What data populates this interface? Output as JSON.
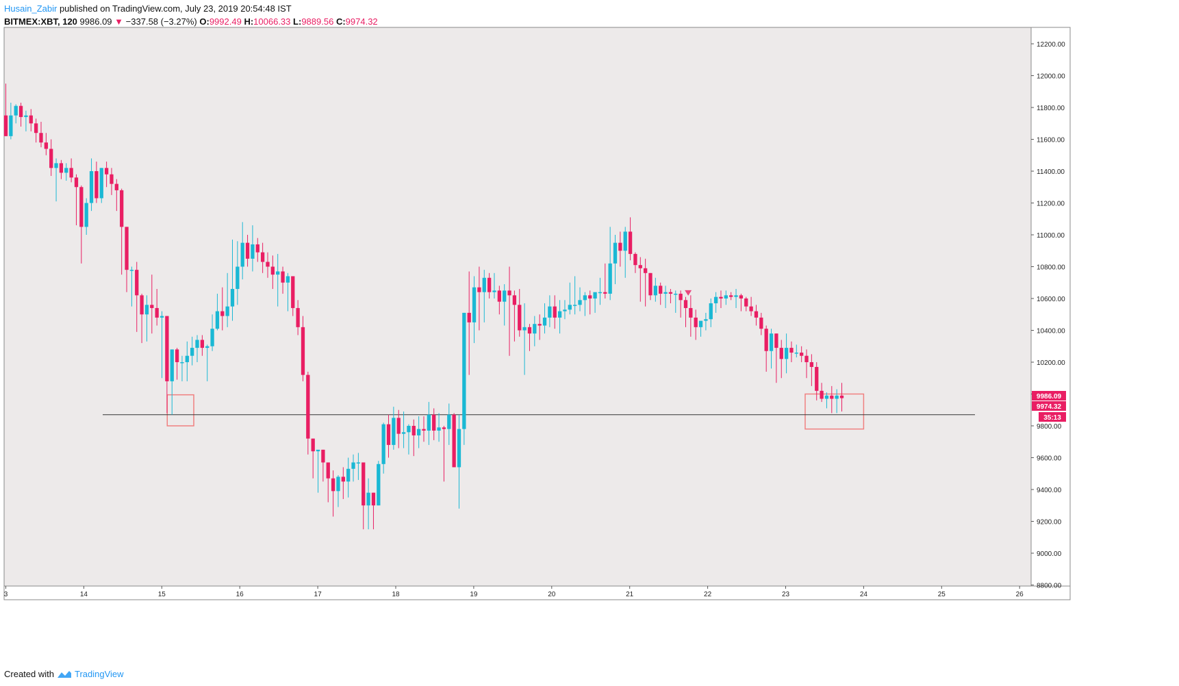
{
  "header": {
    "author": "Husain_Zabir",
    "published": "published on TradingView.com, July 23, 2019 20:54:48 IST",
    "symbol": "BITMEX:XBT, 120",
    "last": "9986.09",
    "change": "−337.58 (−3.27%)",
    "open_label": "O:",
    "open": "9992.49",
    "high_label": "H:",
    "high": "10066.33",
    "low_label": "L:",
    "low": "9889.56",
    "close_label": "C:",
    "close": "9974.32"
  },
  "footer": {
    "created_with": "Created with",
    "brand": "TradingView"
  },
  "colors": {
    "up": "#1ab8d4",
    "down": "#e91e63",
    "background": "#edeaea",
    "box": "#f08080",
    "hline": "#333333"
  },
  "icons": {
    "down_arrow": "triangle-down-icon",
    "logo": "tradingview-logo-icon",
    "marker": "triangle-down-icon"
  },
  "chart_data": {
    "type": "candlestick",
    "y_ticks": [
      "12200.00",
      "12000.00",
      "11800.00",
      "11600.00",
      "11400.00",
      "11200.00",
      "11000.00",
      "10800.00",
      "10600.00",
      "10400.00",
      "10200.00",
      "10000.00",
      "9800.00",
      "9600.00",
      "9400.00",
      "9200.00",
      "9000.00",
      "8800.00"
    ],
    "x_ticks": [
      "3",
      "14",
      "15",
      "16",
      "17",
      "18",
      "19",
      "20",
      "21",
      "22",
      "23",
      "24",
      "25",
      "26"
    ],
    "ylim": [
      8800,
      12300
    ],
    "price_labels": [
      {
        "text": "9986.09",
        "kind": "last"
      },
      {
        "text": "9974.32",
        "kind": "close"
      },
      {
        "text": "35:13",
        "kind": "timer"
      }
    ],
    "support_level": 9870,
    "annotation_boxes": [
      {
        "x_from": 15.07,
        "x_to": 15.41,
        "y_from": 9800,
        "y_to": 9995
      },
      {
        "x_from": 23.25,
        "x_to": 24.0,
        "y_from": 9780,
        "y_to": 10000
      }
    ],
    "marker": {
      "x": 21.75,
      "y": 10635
    },
    "candles": [
      [
        11750,
        11950,
        11620,
        11620
      ],
      [
        11620,
        11830,
        11600,
        11750
      ],
      [
        11750,
        11820,
        11700,
        11810
      ],
      [
        11810,
        11830,
        11680,
        11740
      ],
      [
        11740,
        11780,
        11650,
        11750
      ],
      [
        11750,
        11790,
        11650,
        11700
      ],
      [
        11700,
        11730,
        11580,
        11640
      ],
      [
        11640,
        11710,
        11550,
        11580
      ],
      [
        11580,
        11640,
        11500,
        11540
      ],
      [
        11540,
        11600,
        11370,
        11420
      ],
      [
        11420,
        11480,
        11210,
        11450
      ],
      [
        11450,
        11470,
        11350,
        11390
      ],
      [
        11390,
        11450,
        11340,
        11420
      ],
      [
        11420,
        11480,
        11330,
        11360
      ],
      [
        11360,
        11380,
        11060,
        11300
      ],
      [
        11300,
        11310,
        10820,
        11050
      ],
      [
        11050,
        11230,
        11000,
        11200
      ],
      [
        11200,
        11480,
        11150,
        11400
      ],
      [
        11400,
        11460,
        11200,
        11230
      ],
      [
        11230,
        11420,
        11200,
        11420
      ],
      [
        11420,
        11460,
        11300,
        11380
      ],
      [
        11380,
        11420,
        11250,
        11320
      ],
      [
        11320,
        11350,
        11150,
        11280
      ],
      [
        11280,
        11290,
        10750,
        11050
      ],
      [
        11050,
        11050,
        10640,
        10780
      ],
      [
        10780,
        10800,
        10550,
        10780
      ],
      [
        10780,
        10830,
        10390,
        10620
      ],
      [
        10620,
        10630,
        10320,
        10500
      ],
      [
        10500,
        10620,
        10330,
        10560
      ],
      [
        10560,
        10750,
        10380,
        10540
      ],
      [
        10540,
        10660,
        10430,
        10480
      ],
      [
        10480,
        10520,
        10100,
        10490
      ],
      [
        10490,
        10490,
        9880,
        10080
      ],
      [
        10080,
        10280,
        9870,
        10280
      ],
      [
        10280,
        10290,
        10090,
        10200
      ],
      [
        10200,
        10240,
        10080,
        10200
      ],
      [
        10200,
        10330,
        10080,
        10240
      ],
      [
        10240,
        10360,
        10180,
        10290
      ],
      [
        10290,
        10370,
        10200,
        10340
      ],
      [
        10340,
        10370,
        10240,
        10290
      ],
      [
        10290,
        10310,
        10080,
        10300
      ],
      [
        10300,
        10500,
        10270,
        10410
      ],
      [
        10410,
        10630,
        10400,
        10520
      ],
      [
        10520,
        10670,
        10400,
        10490
      ],
      [
        10490,
        10760,
        10420,
        10550
      ],
      [
        10550,
        10970,
        10460,
        10660
      ],
      [
        10660,
        10960,
        10560,
        10800
      ],
      [
        10800,
        11080,
        10720,
        10950
      ],
      [
        10950,
        11000,
        10800,
        10850
      ],
      [
        10850,
        11060,
        10770,
        10940
      ],
      [
        10940,
        10980,
        10830,
        10890
      ],
      [
        10890,
        10950,
        10760,
        10830
      ],
      [
        10830,
        10890,
        10730,
        10800
      ],
      [
        10800,
        10870,
        10660,
        10750
      ],
      [
        10750,
        10880,
        10550,
        10770
      ],
      [
        10770,
        10800,
        10630,
        10700
      ],
      [
        10700,
        10760,
        10520,
        10740
      ],
      [
        10740,
        10740,
        10490,
        10540
      ],
      [
        10540,
        10590,
        10370,
        10420
      ],
      [
        10420,
        10490,
        10080,
        10120
      ],
      [
        10120,
        10140,
        9620,
        9720
      ],
      [
        9720,
        9720,
        9470,
        9640
      ],
      [
        9640,
        9640,
        9380,
        9650
      ],
      [
        9650,
        9650,
        9450,
        9570
      ],
      [
        9570,
        9570,
        9320,
        9470
      ],
      [
        9470,
        9520,
        9230,
        9390
      ],
      [
        9390,
        9490,
        9290,
        9480
      ],
      [
        9480,
        9540,
        9340,
        9450
      ],
      [
        9450,
        9600,
        9350,
        9530
      ],
      [
        9530,
        9620,
        9450,
        9570
      ],
      [
        9570,
        9630,
        9460,
        9570
      ],
      [
        9570,
        9570,
        9150,
        9300
      ],
      [
        9300,
        9470,
        9150,
        9380
      ],
      [
        9380,
        9380,
        9150,
        9300
      ],
      [
        9300,
        9580,
        9300,
        9560
      ],
      [
        9560,
        9820,
        9500,
        9810
      ],
      [
        9810,
        9870,
        9600,
        9680
      ],
      [
        9680,
        9920,
        9650,
        9850
      ],
      [
        9850,
        9900,
        9660,
        9750
      ],
      [
        9750,
        9890,
        9660,
        9760
      ],
      [
        9760,
        9810,
        9620,
        9800
      ],
      [
        9800,
        9840,
        9610,
        9740
      ],
      [
        9740,
        9860,
        9660,
        9780
      ],
      [
        9780,
        9860,
        9700,
        9770
      ],
      [
        9770,
        9950,
        9680,
        9870
      ],
      [
        9870,
        9910,
        9710,
        9770
      ],
      [
        9770,
        9880,
        9700,
        9790
      ],
      [
        9790,
        9800,
        9450,
        9780
      ],
      [
        9780,
        9940,
        9680,
        9870
      ],
      [
        9870,
        9880,
        9540,
        9540
      ],
      [
        9540,
        9870,
        9280,
        9780
      ],
      [
        9780,
        10510,
        9680,
        10510
      ],
      [
        10510,
        10770,
        10120,
        10450
      ],
      [
        10450,
        10740,
        10320,
        10670
      ],
      [
        10670,
        10800,
        10400,
        10640
      ],
      [
        10640,
        10780,
        10450,
        10730
      ],
      [
        10730,
        10760,
        10600,
        10640
      ],
      [
        10640,
        10760,
        10600,
        10650
      ],
      [
        10650,
        10680,
        10500,
        10580
      ],
      [
        10580,
        10690,
        10430,
        10650
      ],
      [
        10650,
        10800,
        10240,
        10620
      ],
      [
        10620,
        10650,
        10330,
        10560
      ],
      [
        10560,
        10660,
        10360,
        10400
      ],
      [
        10400,
        10570,
        10120,
        10420
      ],
      [
        10420,
        10440,
        10270,
        10380
      ],
      [
        10380,
        10490,
        10300,
        10440
      ],
      [
        10440,
        10500,
        10340,
        10430
      ],
      [
        10430,
        10570,
        10380,
        10480
      ],
      [
        10480,
        10620,
        10420,
        10550
      ],
      [
        10550,
        10620,
        10410,
        10480
      ],
      [
        10480,
        10590,
        10380,
        10520
      ],
      [
        10520,
        10590,
        10470,
        10530
      ],
      [
        10530,
        10700,
        10500,
        10560
      ],
      [
        10560,
        10740,
        10500,
        10560
      ],
      [
        10560,
        10670,
        10520,
        10590
      ],
      [
        10590,
        10640,
        10490,
        10620
      ],
      [
        10620,
        10650,
        10500,
        10600
      ],
      [
        10600,
        10630,
        10510,
        10640
      ],
      [
        10640,
        10730,
        10560,
        10640
      ],
      [
        10640,
        10820,
        10600,
        10630
      ],
      [
        10630,
        11050,
        10590,
        10820
      ],
      [
        10820,
        11000,
        10690,
        10950
      ],
      [
        10950,
        11020,
        10800,
        10900
      ],
      [
        10900,
        11050,
        10730,
        11020
      ],
      [
        11020,
        11110,
        10840,
        10880
      ],
      [
        10880,
        10890,
        10760,
        10810
      ],
      [
        10810,
        10860,
        10580,
        10790
      ],
      [
        10790,
        10850,
        10550,
        10760
      ],
      [
        10760,
        10760,
        10590,
        10620
      ],
      [
        10620,
        10730,
        10580,
        10680
      ],
      [
        10680,
        10700,
        10560,
        10630
      ],
      [
        10630,
        10680,
        10540,
        10640
      ],
      [
        10640,
        10660,
        10570,
        10630
      ],
      [
        10630,
        10650,
        10510,
        10630
      ],
      [
        10630,
        10650,
        10480,
        10590
      ],
      [
        10590,
        10610,
        10420,
        10540
      ],
      [
        10540,
        10620,
        10360,
        10480
      ],
      [
        10480,
        10530,
        10340,
        10420
      ],
      [
        10420,
        10440,
        10360,
        10460
      ],
      [
        10460,
        10510,
        10400,
        10470
      ],
      [
        10470,
        10600,
        10420,
        10570
      ],
      [
        10570,
        10640,
        10510,
        10610
      ],
      [
        10610,
        10650,
        10540,
        10600
      ],
      [
        10600,
        10650,
        10560,
        10620
      ],
      [
        10620,
        10640,
        10590,
        10610
      ],
      [
        10610,
        10660,
        10540,
        10620
      ],
      [
        10620,
        10630,
        10520,
        10600
      ],
      [
        10600,
        10610,
        10520,
        10550
      ],
      [
        10550,
        10610,
        10490,
        10520
      ],
      [
        10520,
        10560,
        10430,
        10480
      ],
      [
        10480,
        10510,
        10370,
        10410
      ],
      [
        10410,
        10430,
        10140,
        10270
      ],
      [
        10270,
        10410,
        10160,
        10380
      ],
      [
        10380,
        10380,
        10070,
        10290
      ],
      [
        10290,
        10340,
        10100,
        10220
      ],
      [
        10220,
        10380,
        10130,
        10290
      ],
      [
        10290,
        10330,
        10200,
        10260
      ],
      [
        10260,
        10310,
        10230,
        10260
      ],
      [
        10260,
        10300,
        10200,
        10240
      ],
      [
        10240,
        10280,
        10100,
        10200
      ],
      [
        10200,
        10250,
        10050,
        10170
      ],
      [
        10170,
        10200,
        9960,
        10020
      ],
      [
        10020,
        10070,
        9950,
        9970
      ],
      [
        9970,
        10010,
        9910,
        9990
      ],
      [
        9990,
        10050,
        9880,
        9970
      ],
      [
        9970,
        10030,
        9880,
        9990
      ],
      [
        9990,
        10070,
        9890,
        9974
      ]
    ]
  }
}
